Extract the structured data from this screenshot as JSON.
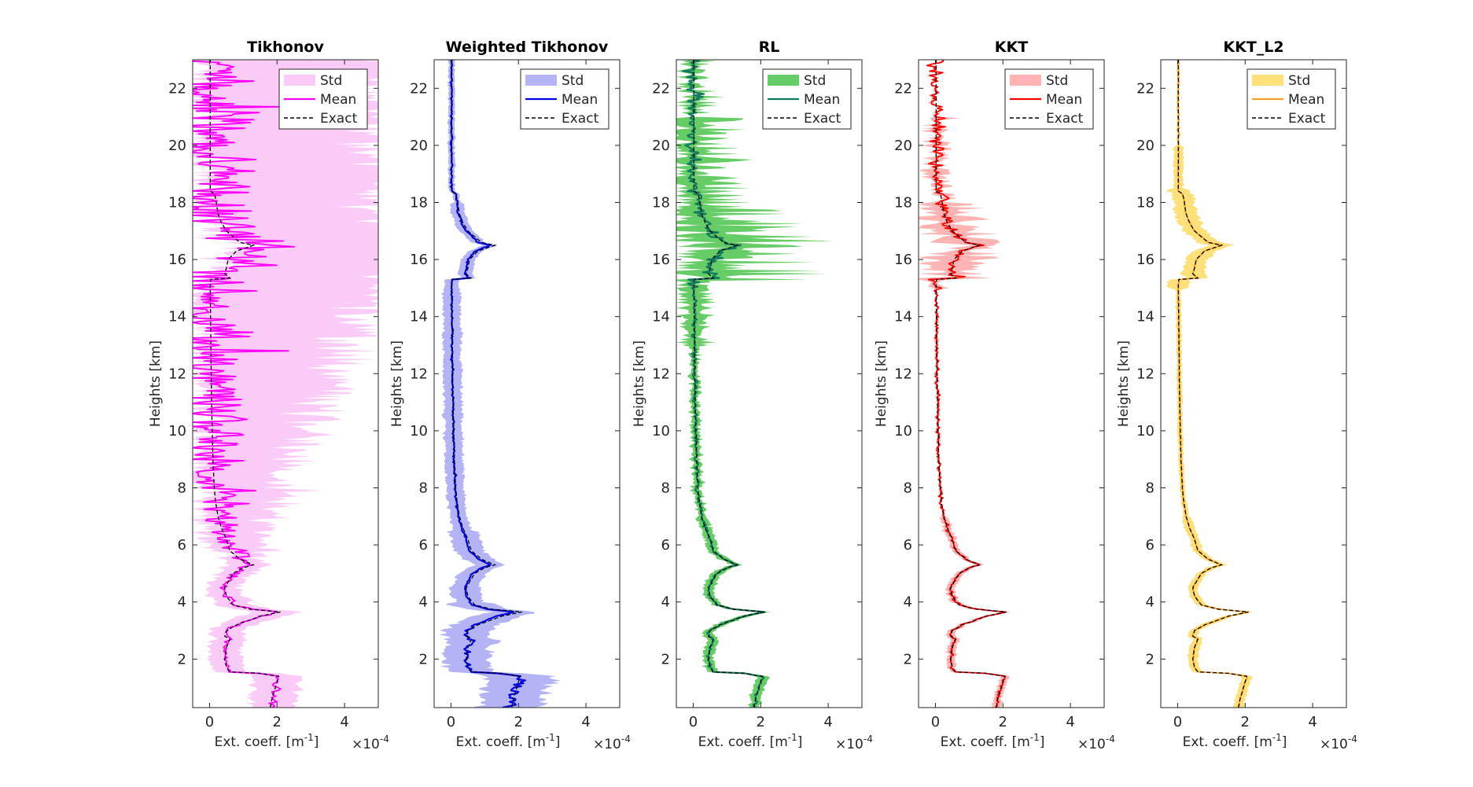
{
  "figure": {
    "ylabel": "Heights [km]",
    "xlabel": "Ext. coeff. [m",
    "xlabel_sup": "-1",
    "xlabel_end": "]",
    "x_multiplier_base": "×10",
    "x_multiplier_exp": "-4"
  },
  "chart_data": [
    {
      "type": "line",
      "title": "Tikhonov",
      "fill_color": "#fbcbf8",
      "line_color": "#ff00ff",
      "legend": [
        "Std",
        "Mean",
        "Exact"
      ],
      "legend_position": "top-right",
      "xlim": [
        -0.5,
        5.0
      ],
      "ylim": [
        0.3,
        23.0
      ],
      "xticks": [
        0,
        2,
        4
      ],
      "xtick_labels": [
        "0",
        "2",
        "4"
      ],
      "yticks": [
        2,
        4,
        6,
        8,
        10,
        12,
        14,
        16,
        18,
        20,
        22
      ],
      "ytick_labels": [
        "2",
        "4",
        "6",
        "8",
        "10",
        "12",
        "14",
        "16",
        "18",
        "20",
        "22"
      ],
      "std_upper_max": 5.0,
      "noise_level": "very high"
    },
    {
      "type": "line",
      "title": "Weighted Tikhonov",
      "fill_color": "#b3b3f5",
      "line_color": "#0000e6",
      "legend": [
        "Std",
        "Mean",
        "Exact"
      ],
      "legend_position": "top-right",
      "xlim": [
        -0.5,
        5.0
      ],
      "ylim": [
        0.3,
        23.0
      ],
      "xticks": [
        0,
        2,
        4
      ],
      "xtick_labels": [
        "0",
        "2",
        "4"
      ],
      "yticks": [
        2,
        4,
        6,
        8,
        10,
        12,
        14,
        16,
        18,
        20,
        22
      ],
      "ytick_labels": [
        "2",
        "4",
        "6",
        "8",
        "10",
        "12",
        "14",
        "16",
        "18",
        "20",
        "22"
      ],
      "noise_level": "smooth"
    },
    {
      "type": "line",
      "title": "RL",
      "fill_color": "#66cc66",
      "line_color": "#0e7a5e",
      "legend": [
        "Std",
        "Mean",
        "Exact"
      ],
      "legend_position": "top-right",
      "xlim": [
        -0.5,
        5.0
      ],
      "ylim": [
        0.3,
        23.0
      ],
      "xticks": [
        0,
        2,
        4
      ],
      "xtick_labels": [
        "0",
        "2",
        "4"
      ],
      "yticks": [
        2,
        4,
        6,
        8,
        10,
        12,
        14,
        16,
        18,
        20,
        22
      ],
      "ytick_labels": [
        "2",
        "4",
        "6",
        "8",
        "10",
        "12",
        "14",
        "16",
        "18",
        "20",
        "22"
      ],
      "noise_level": "spiky aloft"
    },
    {
      "type": "line",
      "title": "KKT",
      "fill_color": "#ffb3b3",
      "line_color": "#ff0000",
      "legend": [
        "Std",
        "Mean",
        "Exact"
      ],
      "legend_position": "top-right",
      "xlim": [
        -0.5,
        5.0
      ],
      "ylim": [
        0.3,
        23.0
      ],
      "xticks": [
        0,
        2,
        4
      ],
      "xtick_labels": [
        "0",
        "2",
        "4"
      ],
      "yticks": [
        2,
        4,
        6,
        8,
        10,
        12,
        14,
        16,
        18,
        20,
        22
      ],
      "ytick_labels": [
        "2",
        "4",
        "6",
        "8",
        "10",
        "12",
        "14",
        "16",
        "18",
        "20",
        "22"
      ],
      "noise_level": "moderate"
    },
    {
      "type": "line",
      "title": "KKT_L2",
      "fill_color": "#fde07a",
      "line_color": "#f5a020",
      "legend": [
        "Std",
        "Mean",
        "Exact"
      ],
      "legend_position": "top-right",
      "xlim": [
        -0.5,
        5.0
      ],
      "ylim": [
        0.3,
        23.0
      ],
      "xticks": [
        0,
        2,
        4
      ],
      "xtick_labels": [
        "0",
        "2",
        "4"
      ],
      "yticks": [
        2,
        4,
        6,
        8,
        10,
        12,
        14,
        16,
        18,
        20,
        22
      ],
      "ytick_labels": [
        "2",
        "4",
        "6",
        "8",
        "10",
        "12",
        "14",
        "16",
        "18",
        "20",
        "22"
      ],
      "noise_level": "smooth"
    }
  ],
  "exact_profile": {
    "heights_km": [
      0.3,
      0.6,
      1.0,
      1.4,
      1.5,
      1.55,
      1.7,
      2.0,
      2.4,
      2.7,
      2.8,
      3.0,
      3.2,
      3.5,
      3.65,
      3.75,
      3.9,
      4.2,
      4.5,
      4.8,
      5.0,
      5.2,
      5.3,
      5.5,
      5.8,
      6.2,
      6.6,
      7.0,
      7.5,
      8.0,
      9.0,
      10.0,
      11.0,
      12.0,
      13.0,
      14.0,
      15.0,
      15.3,
      15.35,
      15.5,
      15.7,
      16.0,
      16.3,
      16.5,
      16.6,
      16.8,
      17.0,
      17.3,
      17.6,
      18.0,
      18.3,
      18.4,
      19.0,
      20.0,
      21.0,
      22.0,
      23.0
    ],
    "values_1e-4": [
      1.8,
      1.85,
      1.95,
      2.05,
      1.5,
      0.6,
      0.5,
      0.45,
      0.5,
      0.6,
      0.45,
      0.5,
      0.8,
      1.5,
      2.1,
      1.2,
      0.7,
      0.5,
      0.45,
      0.6,
      0.7,
      1.0,
      1.3,
      0.9,
      0.6,
      0.5,
      0.35,
      0.25,
      0.18,
      0.14,
      0.1,
      0.08,
      0.06,
      0.05,
      0.04,
      0.03,
      0.02,
      0.03,
      0.6,
      0.45,
      0.5,
      0.55,
      0.8,
      1.3,
      0.9,
      0.7,
      0.5,
      0.35,
      0.25,
      0.2,
      0.15,
      0.02,
      0.02,
      0.02,
      0.02,
      0.02,
      0.02
    ]
  }
}
